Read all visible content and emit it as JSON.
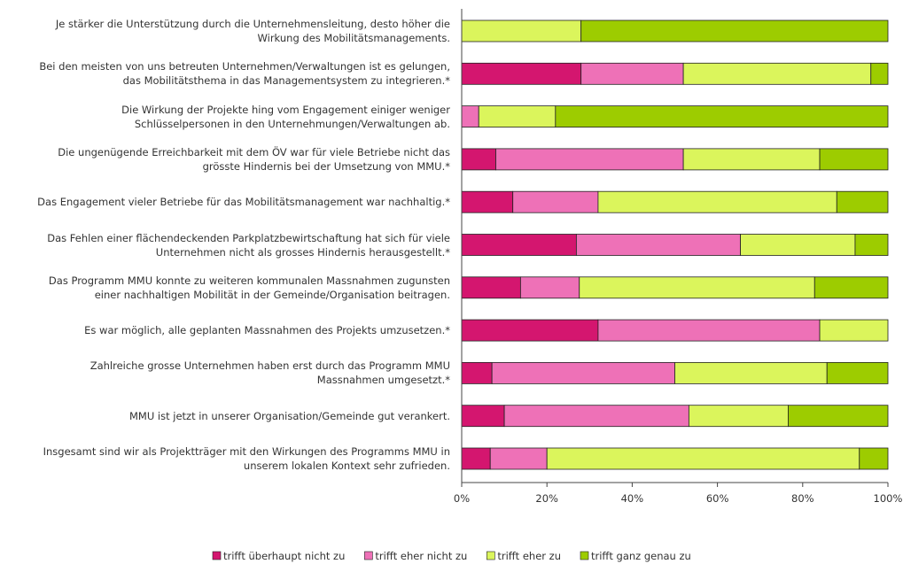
{
  "chart_data": {
    "type": "stacked_bar_horizontal",
    "categories": [
      "Je stärker die Unterstützung durch die Unternehmensleitung, desto höher die\nWirkung des Mobilitätsmanagements.",
      "Bei den meisten von uns betreuten Unternehmen/Verwaltungen ist es gelungen,\ndas Mobilitätsthema in das Managementsystem zu integrieren.*",
      "Die Wirkung der Projekte hing vom Engagement einiger weniger\nSchlüsselpersonen in den Unternehmungen/Verwaltungen ab.",
      "Die ungenügende Erreichbarkeit mit dem ÖV war für viele Betriebe nicht das\ngrösste Hindernis bei der Umsetzung von MMU.*",
      "Das Engagement vieler Betriebe für das Mobilitätsmanagement war nachhaltig.*",
      "Das Fehlen einer flächendeckenden Parkplatzbewirtschaftung hat sich für viele\nUnternehmen nicht als grosses Hindernis herausgestellt.*",
      "Das Programm MMU konnte zu weiteren kommunalen Massnahmen zugunsten\neiner nachhaltigen Mobilität in der Gemeinde/Organisation beitragen.",
      "Es war möglich, alle geplanten Massnahmen des Projekts umzusetzen.*",
      "Zahlreiche grosse Unternehmen haben erst durch das Programm MMU\nMassnahmen umgesetzt.*",
      "MMU ist jetzt in unserer Organisation/Gemeinde gut verankert.",
      "Insgesamt sind wir als Projektträger mit den Wirkungen des Programms MMU in\nunserem lokalen Kontext sehr zufrieden."
    ],
    "series": [
      {
        "name": "trifft überhaupt nicht zu",
        "color": "#d4166f",
        "values": [
          0,
          28,
          0,
          8,
          12,
          26.9,
          13.8,
          32,
          7.1,
          10,
          6.7
        ]
      },
      {
        "name": "trifft eher nicht zu",
        "color": "#ee71b7",
        "values": [
          0,
          24,
          4,
          44,
          20,
          38.5,
          13.8,
          52,
          42.9,
          43.3,
          13.3
        ]
      },
      {
        "name": "trifft eher zu",
        "color": "#dbf55c",
        "values": [
          28,
          44,
          18,
          32,
          56,
          26.9,
          55.2,
          16,
          35.7,
          23.3,
          73.3
        ]
      },
      {
        "name": "trifft ganz genau zu",
        "color": "#9dcc00",
        "values": [
          72,
          4,
          78,
          16,
          12,
          7.7,
          17.2,
          0,
          14.3,
          23.4,
          6.7
        ]
      }
    ],
    "xlim": [
      0,
      100
    ],
    "xticks": [
      {
        "value": 0,
        "label": "0%"
      },
      {
        "value": 20,
        "label": "20%"
      },
      {
        "value": 40,
        "label": "40%"
      },
      {
        "value": 60,
        "label": "60%"
      },
      {
        "value": 80,
        "label": "80%"
      },
      {
        "value": 100,
        "label": "100%"
      }
    ]
  }
}
